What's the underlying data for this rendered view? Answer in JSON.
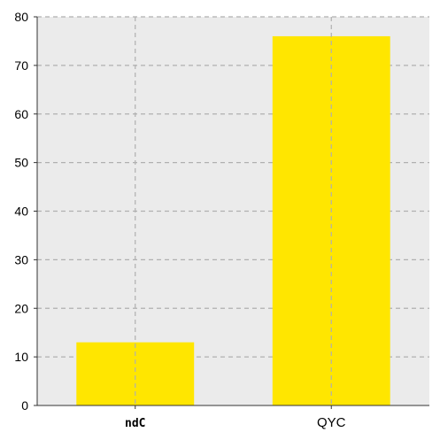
{
  "chart_data": {
    "type": "bar",
    "categories": [
      "ndC",
      "QYC"
    ],
    "values": [
      13,
      76
    ],
    "title": "",
    "xlabel": "",
    "ylabel": "",
    "ylim": [
      0,
      80
    ],
    "yticks": [
      "0",
      "10",
      "20",
      "30",
      "40",
      "50",
      "60",
      "70",
      "80"
    ],
    "grid": true,
    "bar_color": "#FFE600",
    "background_color": "#EBEBEB",
    "grid_color": "#B0B0B0"
  }
}
